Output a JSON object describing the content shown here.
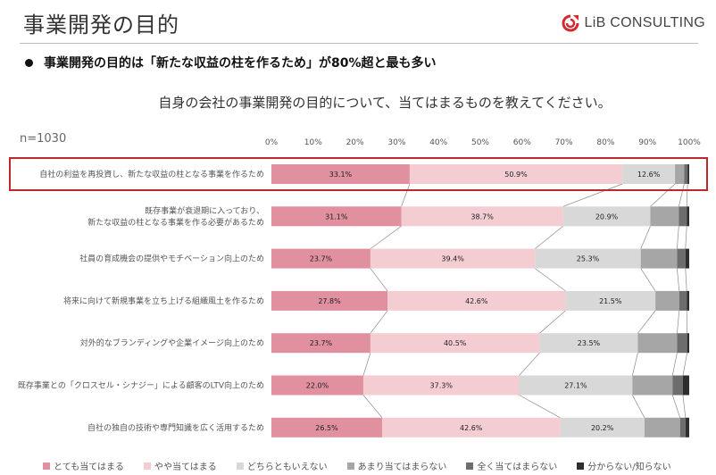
{
  "header": {
    "title": "事業開発の目的",
    "logo_text": "LiB CONSULTING"
  },
  "bullet": "事業開発の目的は「新たな収益の柱を作るため」が80%超と最も多い",
  "question": "自身の会社の事業開発の目的について、当てはまるものを教えてください。",
  "sample": "n=1030",
  "colors": [
    "#e0909e",
    "#f4cdd3",
    "#d8d8d8",
    "#a6a6a6",
    "#6d6d6d",
    "#2e2e2e"
  ],
  "chart_data": {
    "type": "bar",
    "orientation": "horizontal",
    "stacked": true,
    "xlim": [
      0,
      100
    ],
    "x_ticks": [
      "0%",
      "10%",
      "20%",
      "30%",
      "40%",
      "50%",
      "60%",
      "70%",
      "80%",
      "90%",
      "100%"
    ],
    "legend_position": "bottom",
    "categories": [
      "自社の利益を再投資し、新たな収益の柱となる事業を作るため",
      "既存事業が衰退期に入っており、\n新たな収益の柱となる事業を作る必要があるため",
      "社員の育成機会の提供やモチベーション向上のため",
      "将来に向けて新規事業を立ち上げる組織風土を作るため",
      "対外的なブランディングや企業イメージ向上のため",
      "既存事業との「クロスセル・シナジー」による顧客のLTV向上のため",
      "自社の独自の技術や専門知識を広く活用するため"
    ],
    "series": [
      {
        "name": "とても当てはまる",
        "values": [
          33.1,
          31.1,
          23.7,
          27.8,
          23.7,
          22.0,
          26.5
        ]
      },
      {
        "name": "やや当てはまる",
        "values": [
          50.9,
          38.7,
          39.4,
          42.6,
          40.5,
          37.3,
          42.6
        ]
      },
      {
        "name": "どちらともいえない",
        "values": [
          12.6,
          20.9,
          25.3,
          21.5,
          23.5,
          27.1,
          20.2
        ]
      },
      {
        "name": "あまり当てはまらない",
        "values": [
          2.2,
          6.8,
          8.7,
          5.7,
          9.4,
          9.6,
          8.5
        ]
      },
      {
        "name": "全く当てはまらない",
        "values": [
          0.8,
          1.9,
          2.0,
          1.8,
          2.4,
          2.5,
          1.3
        ]
      },
      {
        "name": "分からない/知らない",
        "values": [
          0.4,
          0.6,
          0.9,
          0.6,
          0.5,
          1.5,
          0.9
        ]
      }
    ],
    "labeled_series": 3
  }
}
